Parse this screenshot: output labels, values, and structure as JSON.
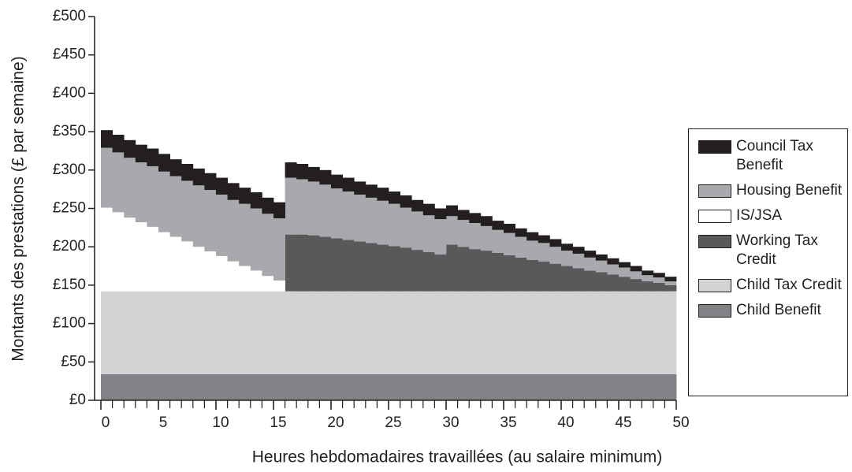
{
  "chart_data": {
    "type": "stacked-step-area",
    "x_label": "Heures hebdomadaires travaillées (au salaire minimum)",
    "y_label": "Montants des prestations (£ par semaine)",
    "x": [
      0,
      1,
      2,
      3,
      4,
      5,
      6,
      7,
      8,
      9,
      10,
      11,
      12,
      13,
      14,
      15,
      16,
      17,
      18,
      19,
      20,
      21,
      22,
      23,
      24,
      25,
      26,
      27,
      28,
      29,
      30,
      31,
      32,
      33,
      34,
      35,
      36,
      37,
      38,
      39,
      40,
      41,
      42,
      43,
      44,
      45,
      46,
      47,
      48,
      49
    ],
    "xlim": [
      0,
      50
    ],
    "xticks": [
      0,
      5,
      10,
      15,
      20,
      25,
      30,
      35,
      40,
      45,
      50
    ],
    "ylim": [
      0,
      500
    ],
    "yticks": [
      {
        "value": 0,
        "label": "£0"
      },
      {
        "value": 50,
        "label": "£50"
      },
      {
        "value": 100,
        "label": "£100"
      },
      {
        "value": 150,
        "label": "£150"
      },
      {
        "value": 200,
        "label": "£200"
      },
      {
        "value": 250,
        "label": "£250"
      },
      {
        "value": 300,
        "label": "£300"
      },
      {
        "value": 350,
        "label": "£350"
      },
      {
        "value": 400,
        "label": "£400"
      },
      {
        "value": 450,
        "label": "£450"
      },
      {
        "value": 500,
        "label": "£500"
      }
    ],
    "series": [
      {
        "name": "Council Tax Benefit",
        "color": "#231f20",
        "values": [
          23,
          23,
          23,
          23,
          23,
          23,
          22,
          22,
          22,
          22,
          22,
          22,
          21,
          21,
          21,
          21,
          20,
          20,
          19,
          19,
          18,
          18,
          17,
          17,
          17,
          16,
          16,
          15,
          15,
          14,
          14,
          13,
          13,
          13,
          12,
          12,
          11,
          11,
          10,
          10,
          9,
          9,
          9,
          8,
          8,
          7,
          7,
          6,
          6,
          6
        ]
      },
      {
        "name": "Housing Benefit",
        "color": "#a7a9ac",
        "values": [
          78,
          78,
          78,
          78,
          79,
          79,
          79,
          79,
          80,
          80,
          80,
          80,
          81,
          81,
          81,
          81,
          74,
          72,
          70,
          68,
          65,
          63,
          61,
          59,
          57,
          55,
          52,
          50,
          48,
          46,
          37,
          35,
          34,
          32,
          30,
          29,
          27,
          25,
          24,
          22,
          20,
          19,
          17,
          15,
          13,
          12,
          10,
          8,
          7,
          5
        ]
      },
      {
        "name": "IS/JSA",
        "color": "#ffffff",
        "values": [
          109,
          103,
          96,
          90,
          84,
          77,
          71,
          65,
          58,
          52,
          46,
          39,
          33,
          27,
          20,
          14,
          0,
          0,
          0,
          0,
          0,
          0,
          0,
          0,
          0,
          0,
          0,
          0,
          0,
          0,
          0,
          0,
          0,
          0,
          0,
          0,
          0,
          0,
          0,
          0,
          0,
          0,
          0,
          0,
          0,
          0,
          0,
          0,
          0,
          0
        ]
      },
      {
        "name": "Working Tax Credit",
        "color": "#58595b",
        "values": [
          0,
          0,
          0,
          0,
          0,
          0,
          0,
          0,
          0,
          0,
          0,
          0,
          0,
          0,
          0,
          0,
          74,
          74,
          73,
          71,
          69,
          67,
          65,
          63,
          61,
          59,
          57,
          54,
          51,
          48,
          61,
          58,
          55,
          53,
          50,
          47,
          44,
          41,
          39,
          36,
          33,
          30,
          27,
          25,
          22,
          19,
          16,
          13,
          11,
          8
        ]
      },
      {
        "name": "Child Tax Credit",
        "color": "#d1d3d4",
        "values": [
          108,
          108,
          108,
          108,
          108,
          108,
          108,
          108,
          108,
          108,
          108,
          108,
          108,
          108,
          108,
          108,
          108,
          108,
          108,
          108,
          108,
          108,
          108,
          108,
          108,
          108,
          108,
          108,
          108,
          108,
          108,
          108,
          108,
          108,
          108,
          108,
          108,
          108,
          108,
          108,
          108,
          108,
          108,
          108,
          108,
          108,
          108,
          108,
          108,
          108
        ]
      },
      {
        "name": "Child Benefit",
        "color": "#808285",
        "values": [
          34,
          34,
          34,
          34,
          34,
          34,
          34,
          34,
          34,
          34,
          34,
          34,
          34,
          34,
          34,
          34,
          34,
          34,
          34,
          34,
          34,
          34,
          34,
          34,
          34,
          34,
          34,
          34,
          34,
          34,
          34,
          34,
          34,
          34,
          34,
          34,
          34,
          34,
          34,
          34,
          34,
          34,
          34,
          34,
          34,
          34,
          34,
          34,
          34,
          34
        ]
      }
    ]
  }
}
